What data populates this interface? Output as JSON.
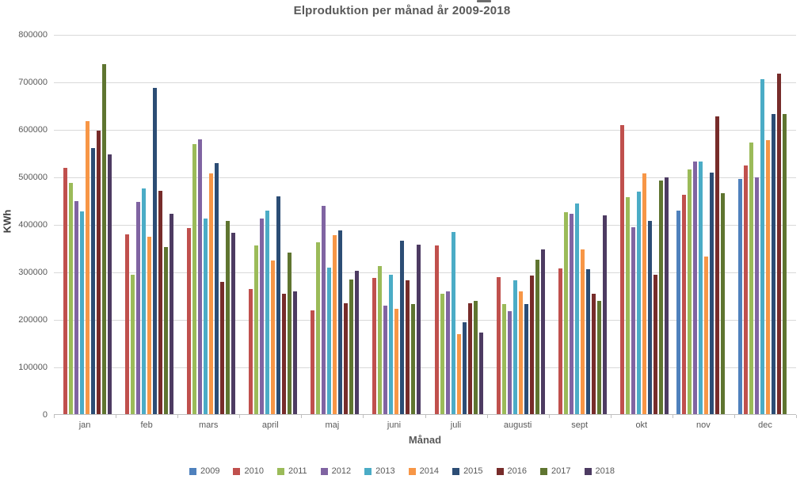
{
  "title": "Elproduktion per månad år  2009-2018",
  "chart_data": {
    "type": "bar",
    "title": "Elproduktion per månad år  2009-2018",
    "xlabel": "Månad",
    "ylabel": "KWh",
    "ylim": [
      0,
      800000
    ],
    "ytick_step": 100000,
    "ytick_labels": [
      "800000",
      "700000",
      "600000",
      "500000",
      "400000",
      "300000",
      "200000",
      "100000",
      "0"
    ],
    "grid": true,
    "legend_position": "bottom",
    "categories": [
      "jan",
      "feb",
      "mars",
      "april",
      "maj",
      "juni",
      "juli",
      "augusti",
      "sept",
      "okt",
      "nov",
      "dec"
    ],
    "series": [
      {
        "name": "2009",
        "color": "#4F81BD",
        "values": [
          null,
          null,
          null,
          null,
          null,
          null,
          null,
          null,
          null,
          null,
          428000,
          495000
        ]
      },
      {
        "name": "2010",
        "color": "#C0504D",
        "values": [
          518000,
          379000,
          391000,
          263000,
          219000,
          286000,
          355000,
          288000,
          306000,
          608000,
          461000,
          524000
        ]
      },
      {
        "name": "2011",
        "color": "#9BBB59",
        "values": [
          487000,
          293000,
          569000,
          355000,
          362000,
          311000,
          254000,
          232000,
          425000,
          457000,
          515000,
          572000
        ]
      },
      {
        "name": "2012",
        "color": "#8064A2",
        "values": [
          448000,
          446000,
          578000,
          412000,
          438000,
          229000,
          258000,
          216000,
          422000,
          393000,
          531000,
          498000
        ]
      },
      {
        "name": "2013",
        "color": "#4BACC6",
        "values": [
          426000,
          475000,
          411000,
          429000,
          308000,
          293000,
          384000,
          281000,
          444000,
          469000,
          532000,
          705000
        ]
      },
      {
        "name": "2014",
        "color": "#F79646",
        "values": [
          617000,
          373000,
          506000,
          323000,
          376000,
          222000,
          168000,
          259000,
          347000,
          506000,
          332000,
          576000
        ]
      },
      {
        "name": "2015",
        "color": "#2C4D75",
        "values": [
          560000,
          687000,
          528000,
          459000,
          387000,
          365000,
          194000,
          231000,
          305000,
          406000,
          508000,
          631000
        ]
      },
      {
        "name": "2016",
        "color": "#772C2A",
        "values": [
          597000,
          470000,
          279000,
          254000,
          233000,
          282000,
          234000,
          291000,
          254000,
          293000,
          627000,
          716000
        ]
      },
      {
        "name": "2017",
        "color": "#5F7530",
        "values": [
          737000,
          352000,
          407000,
          340000,
          284000,
          231000,
          238000,
          325000,
          239000,
          492000,
          465000,
          632000
        ]
      },
      {
        "name": "2018",
        "color": "#4D3B62",
        "values": [
          546000,
          421000,
          381000,
          258000,
          301000,
          357000,
          172000,
          346000,
          419000,
          499000,
          null,
          null
        ]
      }
    ]
  }
}
